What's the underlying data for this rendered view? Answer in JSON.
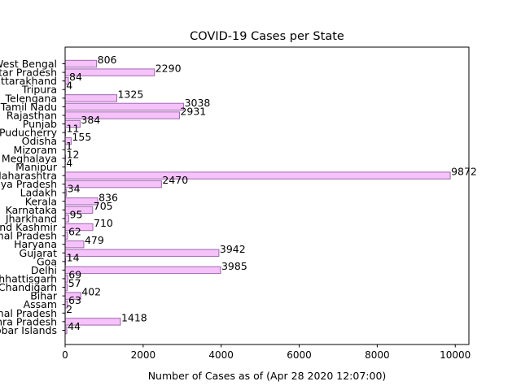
{
  "chart_data": {
    "type": "bar",
    "orientation": "horizontal",
    "title": "COVID-19 Cases per State",
    "xlabel": "Number of Cases as of (Apr 28 2020 12:07:00)",
    "ylabel": "",
    "xlim": [
      0,
      10350
    ],
    "xticks": [
      "0",
      "2000",
      "4000",
      "6000",
      "8000",
      "10000"
    ],
    "grid": false,
    "legend": "none",
    "bar_color": "#f5c2fa",
    "bar_edge_color": "#a066b0",
    "categories": [
      "West Bengal",
      "Uttar Pradesh",
      "Uttarakhand",
      "Tripura",
      "Telengana",
      "Tamil Nadu",
      "Rajasthan",
      "Punjab",
      "Puducherry",
      "Odisha",
      "Mizoram",
      "Meghalaya",
      "Manipur",
      "Maharashtra",
      "Madhya Pradesh",
      "Ladakh",
      "Kerala",
      "Karnataka",
      "Jharkhand",
      "Jammu and Kashmir",
      "Himachal Pradesh",
      "Haryana",
      "Gujarat",
      "Goa",
      "Delhi",
      "Chhattisgarh",
      "Chandigarh",
      "Bihar",
      "Assam",
      "Arunachal Pradesh",
      "Andhra Pradesh",
      "Andaman and Nicobar Islands"
    ],
    "values": [
      806,
      2290,
      84,
      4,
      1325,
      3038,
      2931,
      384,
      11,
      155,
      1,
      12,
      4,
      9872,
      2470,
      34,
      836,
      705,
      95,
      710,
      62,
      479,
      3942,
      14,
      3985,
      69,
      57,
      402,
      63,
      2,
      1418,
      44
    ]
  }
}
